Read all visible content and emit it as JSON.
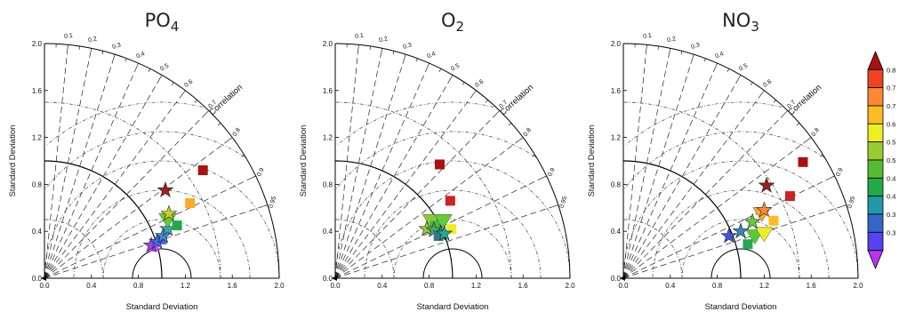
{
  "chart_data": [
    {
      "type": "taylor",
      "title": "PO",
      "title_sub": "4",
      "xlabel": "Standard Deviation",
      "ylabel": "Standard Deviation",
      "xlim": [
        0,
        2.0
      ],
      "ylim": [
        0,
        2.0
      ],
      "x_ticks": [
        "0.0",
        "0.4",
        "0.8",
        "1.2",
        "1.6",
        "2.0"
      ],
      "y_ticks": [
        "0.0",
        "0.4",
        "0.8",
        "1.2",
        "1.6",
        "2.0"
      ],
      "correlation_label": "Correlation",
      "correlation_ticks": [
        "0.1",
        "0.2",
        "0.3",
        "0.4",
        "0.5",
        "0.6",
        "0.7",
        "0.8",
        "0.9",
        "0.95"
      ],
      "points": [
        {
          "x": 0.93,
          "y": 0.27,
          "marker": "square",
          "color": "#dd44ee"
        },
        {
          "x": 0.91,
          "y": 0.28,
          "marker": "star",
          "color": "#9944ee"
        },
        {
          "x": 1.0,
          "y": 0.33,
          "marker": "square",
          "color": "#5566ee"
        },
        {
          "x": 0.96,
          "y": 0.31,
          "marker": "star",
          "color": "#4466ee"
        },
        {
          "x": 1.01,
          "y": 0.36,
          "marker": "star",
          "color": "#4488cc"
        },
        {
          "x": 1.05,
          "y": 0.42,
          "marker": "star",
          "color": "#33aaaa"
        },
        {
          "x": 1.13,
          "y": 0.45,
          "marker": "square",
          "color": "#22aa44"
        },
        {
          "x": 1.05,
          "y": 0.5,
          "marker": "triangle",
          "color": "#66cc33"
        },
        {
          "x": 1.06,
          "y": 0.55,
          "marker": "star",
          "color": "#cccc22"
        },
        {
          "x": 1.24,
          "y": 0.64,
          "marker": "square",
          "color": "#ffaa22"
        },
        {
          "x": 1.03,
          "y": 0.75,
          "marker": "star",
          "color": "#992222"
        },
        {
          "x": 1.35,
          "y": 0.92,
          "marker": "square",
          "color": "#aa1111"
        }
      ]
    },
    {
      "type": "taylor",
      "title": "O",
      "title_sub": "2",
      "xlabel": "Standard Deviation",
      "ylabel": "Standard Deviation",
      "xlim": [
        0,
        2.0
      ],
      "ylim": [
        0,
        2.0
      ],
      "x_ticks": [
        "0.0",
        "0.4",
        "0.8",
        "1.2",
        "1.6",
        "2.0"
      ],
      "y_ticks": [
        "0.0",
        "0.4",
        "0.8",
        "1.2",
        "1.6",
        "2.0"
      ],
      "correlation_label": "Correlation",
      "correlation_ticks": [
        "0.1",
        "0.2",
        "0.3",
        "0.4",
        "0.5",
        "0.6",
        "0.7",
        "0.8",
        "0.9",
        "0.95"
      ],
      "points": [
        {
          "x": 0.82,
          "y": 0.49,
          "marker": "triangle",
          "color": "#88cc33"
        },
        {
          "x": 0.92,
          "y": 0.49,
          "marker": "triangle",
          "color": "#66cc33"
        },
        {
          "x": 0.85,
          "y": 0.45,
          "marker": "square",
          "color": "#44bb44"
        },
        {
          "x": 0.78,
          "y": 0.42,
          "marker": "star",
          "color": "#99cc33"
        },
        {
          "x": 0.84,
          "y": 0.41,
          "marker": "star",
          "color": "#44aa66"
        },
        {
          "x": 0.99,
          "y": 0.42,
          "marker": "square",
          "color": "#eeee22"
        },
        {
          "x": 0.9,
          "y": 0.38,
          "marker": "star",
          "color": "#2288aa"
        },
        {
          "x": 0.88,
          "y": 0.36,
          "marker": "square",
          "color": "#337788"
        },
        {
          "x": 0.93,
          "y": 0.38,
          "marker": "star",
          "color": "#22aa99"
        },
        {
          "x": 0.98,
          "y": 0.66,
          "marker": "square",
          "color": "#cc2222"
        },
        {
          "x": 0.89,
          "y": 0.97,
          "marker": "square",
          "color": "#aa1111"
        }
      ]
    },
    {
      "type": "taylor",
      "title": "NO",
      "title_sub": "3",
      "xlabel": "Standard Deviation",
      "ylabel": "Standard Deviation",
      "xlim": [
        0,
        2.0
      ],
      "ylim": [
        0,
        2.0
      ],
      "x_ticks": [
        "0.0",
        "0.4",
        "0.8",
        "1.2",
        "1.6",
        "2.0"
      ],
      "y_ticks": [
        "0.0",
        "0.4",
        "0.8",
        "1.2",
        "1.6",
        "2.0"
      ],
      "correlation_label": "Correlation",
      "correlation_ticks": [
        "0.1",
        "0.2",
        "0.3",
        "0.4",
        "0.5",
        "0.6",
        "0.7",
        "0.8",
        "0.9",
        "0.95"
      ],
      "points": [
        {
          "x": 0.9,
          "y": 0.36,
          "marker": "star",
          "color": "#4455dd"
        },
        {
          "x": 1.0,
          "y": 0.4,
          "marker": "star",
          "color": "#3388bb"
        },
        {
          "x": 1.06,
          "y": 0.29,
          "marker": "square",
          "color": "#22aa55"
        },
        {
          "x": 1.12,
          "y": 0.36,
          "marker": "triangle",
          "color": "#55cc33"
        },
        {
          "x": 1.2,
          "y": 0.38,
          "marker": "triangle",
          "color": "#eeee22"
        },
        {
          "x": 1.1,
          "y": 0.48,
          "marker": "star",
          "color": "#66cc33"
        },
        {
          "x": 1.18,
          "y": 0.55,
          "marker": "triangle",
          "color": "#ffaa22"
        },
        {
          "x": 1.2,
          "y": 0.58,
          "marker": "star",
          "color": "#ff8833"
        },
        {
          "x": 1.28,
          "y": 0.49,
          "marker": "square",
          "color": "#ffbb22"
        },
        {
          "x": 1.42,
          "y": 0.7,
          "marker": "square",
          "color": "#cc2222"
        },
        {
          "x": 1.22,
          "y": 0.79,
          "marker": "star",
          "color": "#992222"
        },
        {
          "x": 1.53,
          "y": 0.99,
          "marker": "square",
          "color": "#aa1111"
        }
      ]
    }
  ],
  "colorbar": {
    "ticks": [
      "0.3",
      "0.3",
      "0.4",
      "0.4",
      "0.5",
      "0.5",
      "0.6",
      "0.7",
      "0.7",
      "0.8"
    ],
    "colors": [
      "#bb33ee",
      "#5544ee",
      "#3366cc",
      "#2299aa",
      "#22aa44",
      "#55bb33",
      "#99cc33",
      "#eeee22",
      "#ffbb22",
      "#ff8833",
      "#ee4422",
      "#aa1111"
    ]
  }
}
